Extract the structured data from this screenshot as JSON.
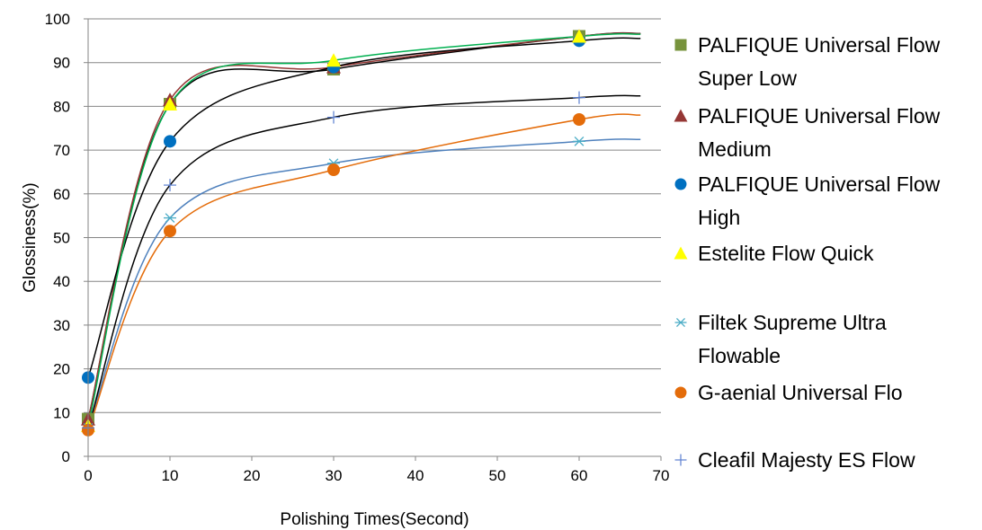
{
  "chart_data": {
    "type": "scatter",
    "title": "",
    "xlabel": "Polishing Times(Second)",
    "ylabel": "Glossiness(%)",
    "xlim": [
      0,
      70
    ],
    "ylim": [
      0,
      100
    ],
    "xticks": [
      0,
      10,
      20,
      30,
      40,
      50,
      60,
      70
    ],
    "yticks": [
      0,
      10,
      20,
      30,
      40,
      50,
      60,
      70,
      80,
      90,
      100
    ],
    "grid": "horizontal",
    "legend_position": "right",
    "trendlines": "fitted curve per series",
    "x": [
      0,
      10,
      30,
      60
    ],
    "series": [
      {
        "name": "PALFIQUE Universal Flow Super Low",
        "values": [
          8.5,
          80.5,
          88.5,
          96
        ],
        "color": "#77933c",
        "marker": "square",
        "trend_color": "#000000"
      },
      {
        "name": "PALFIQUE Universal Flow Medium",
        "values": [
          8.5,
          81.5,
          89,
          96
        ],
        "color": "#953735",
        "marker": "triangle",
        "trend_color": "#953735"
      },
      {
        "name": "PALFIQUE Universal Flow High",
        "values": [
          18,
          72,
          89,
          95
        ],
        "color": "#0070c0",
        "marker": "circle",
        "trend_color": "#000000"
      },
      {
        "name": "Estelite Flow Quick",
        "values": [
          7,
          80.5,
          90.5,
          96
        ],
        "color": "#ffff00",
        "marker": "triangle",
        "trend_color": "#00b050"
      },
      {
        "name": "Filtek Supreme Ultra Flowable",
        "values": [
          6.5,
          54.5,
          67,
          72
        ],
        "color": "#4bacc6",
        "marker": "asterisk",
        "trend_color": "#4f81bd"
      },
      {
        "name": "G-aenial Universal Flo",
        "values": [
          6,
          51.5,
          65.5,
          77
        ],
        "color": "#e46c0a",
        "marker": "circle",
        "trend_color": "#e46c0a"
      },
      {
        "name": "Cleafil Majesty ES Flow",
        "values": [
          6.5,
          62,
          77.5,
          82
        ],
        "color": "#5b7fd0",
        "marker": "plus",
        "trend_color": "#000000"
      }
    ]
  },
  "legend": {
    "items": [
      {
        "lines": [
          "PALFIQUE Universal Flow",
          "Super Low"
        ]
      },
      {
        "lines": [
          "PALFIQUE Universal Flow",
          "Medium"
        ]
      },
      {
        "lines": [
          "PALFIQUE Universal Flow",
          "High"
        ]
      },
      {
        "lines": [
          "Estelite Flow Quick"
        ]
      },
      {
        "lines": [
          "Filtek Supreme Ultra",
          "Flowable"
        ]
      },
      {
        "lines": [
          "G-aenial Universal Flo"
        ]
      },
      {
        "lines": [
          "Cleafil Majesty ES Flow"
        ]
      }
    ]
  }
}
